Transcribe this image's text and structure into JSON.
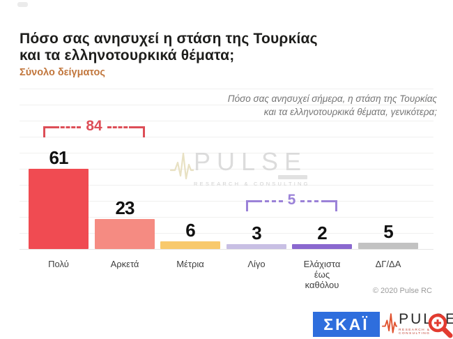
{
  "page": {
    "title": "Πόσο σας ανησυχεί η στάση της Τουρκίας\nκαι τα ελληνοτουρκικά θέματα;",
    "subtitle": "Σύνολο δείγματος",
    "annotation": "Πόσο σας ανησυχεί σήμερα, η στάση της Τουρκίας\nκαι τα ελληνοτουρκικά θέματα, γενικότερα;",
    "copyright": "© 2020 Pulse RC"
  },
  "chart_data": {
    "type": "bar",
    "categories": [
      "Πολύ",
      "Αρκετά",
      "Μέτρια",
      "Λίγο",
      "Ελάχιστα έως καθόλου",
      "ΔΓ/ΔΑ"
    ],
    "values": [
      61,
      23,
      6,
      3,
      2,
      5
    ],
    "colors": [
      "#f04b52",
      "#f58b82",
      "#f8c96d",
      "#c8bfe4",
      "#8a68cf",
      "#c2c2c2"
    ],
    "groups": [
      {
        "label": "84",
        "value": 84,
        "spans": [
          "Πολύ",
          "Αρκετά"
        ],
        "color": "#dd4e57"
      },
      {
        "label": "5",
        "value": 5,
        "spans": [
          "Λίγο",
          "Ελάχιστα έως καθόλου"
        ],
        "color": "#9b82d8"
      }
    ],
    "title": "Πόσο σας ανησυχεί η στάση της Τουρκίας και τα ελληνοτουρκικά θέματα;",
    "xlabel": "",
    "ylabel": "",
    "ylim": [
      0,
      125
    ],
    "grid": true,
    "legend": "none",
    "value_labels": true
  },
  "watermark": {
    "brand": "PULSE",
    "tagline": "RESEARCH & CONSULTING"
  },
  "footer": {
    "skai_logo_text": "ΣΚΑΪ",
    "skai_blue": "#2e6edd",
    "pulse_logo_text": "PULSE",
    "pulse_tagline": "RESEARCH & CONSULTING",
    "pulse_red": "#c0392b",
    "zoom_icon_red": "#e23b30"
  }
}
